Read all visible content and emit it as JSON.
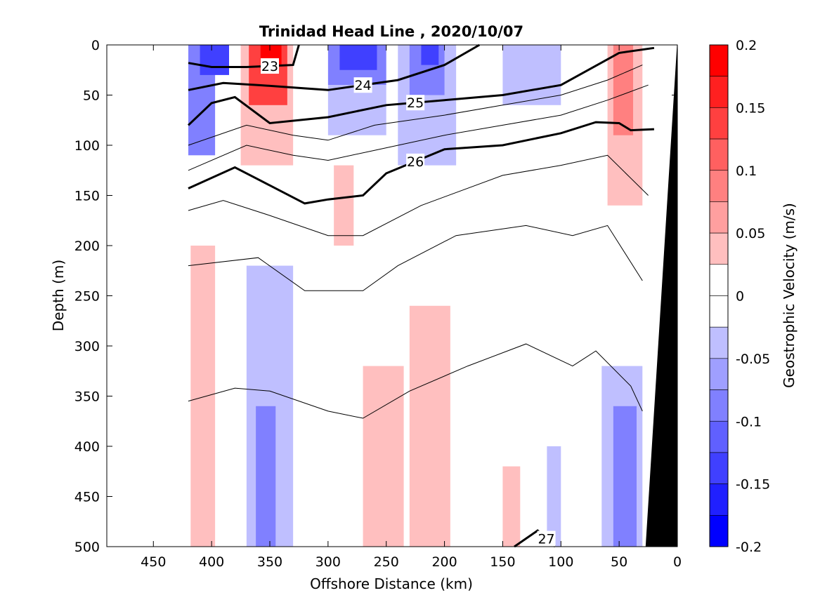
{
  "chart_data": {
    "type": "heatmap",
    "title": "Trinidad Head Line , 2020/10/07",
    "xlabel": "Offshore Distance (km)",
    "ylabel": "Depth (m)",
    "xlim": [
      490,
      0
    ],
    "ylim": [
      500,
      0
    ],
    "x_reversed": true,
    "y_reversed": true,
    "x_ticks": [
      450,
      400,
      350,
      300,
      250,
      200,
      150,
      100,
      50,
      0
    ],
    "y_ticks": [
      0,
      50,
      100,
      150,
      200,
      250,
      300,
      350,
      400,
      450,
      500
    ],
    "colorbar": {
      "label": "Geostrophic Velocity (m/s)",
      "range": [
        -0.2,
        0.2
      ],
      "ticks": [
        "0.2",
        "0.15",
        "0.1",
        "0.05",
        "0",
        "-0.05",
        "-0.1",
        "-0.15",
        "-0.2"
      ],
      "tick_values": [
        0.2,
        0.15,
        0.1,
        0.05,
        0,
        -0.05,
        -0.1,
        -0.15,
        -0.2
      ],
      "levels": 16,
      "negative_color": "#0000ff",
      "positive_color": "#ff0000",
      "zero_color": "#ffffff"
    },
    "velocity_cells": [
      {
        "x0": 420,
        "x1": 397,
        "y0": 0,
        "y1": 110,
        "v": -0.1
      },
      {
        "x0": 410,
        "x1": 385,
        "y0": 0,
        "y1": 30,
        "v": -0.15
      },
      {
        "x0": 375,
        "x1": 330,
        "y0": 0,
        "y1": 120,
        "v": 0.05
      },
      {
        "x0": 368,
        "x1": 335,
        "y0": 0,
        "y1": 60,
        "v": 0.15
      },
      {
        "x0": 358,
        "x1": 340,
        "y0": 0,
        "y1": 20,
        "v": 0.2
      },
      {
        "x0": 300,
        "x1": 250,
        "y0": 0,
        "y1": 40,
        "v": -0.1
      },
      {
        "x0": 300,
        "x1": 250,
        "y0": 40,
        "y1": 90,
        "v": -0.05
      },
      {
        "x0": 290,
        "x1": 258,
        "y0": 0,
        "y1": 25,
        "v": -0.15
      },
      {
        "x0": 240,
        "x1": 190,
        "y0": 0,
        "y1": 120,
        "v": -0.05
      },
      {
        "x0": 230,
        "x1": 200,
        "y0": 0,
        "y1": 50,
        "v": -0.1
      },
      {
        "x0": 220,
        "x1": 205,
        "y0": 0,
        "y1": 20,
        "v": -0.15
      },
      {
        "x0": 295,
        "x1": 278,
        "y0": 120,
        "y1": 200,
        "v": 0.05
      },
      {
        "x0": 150,
        "x1": 100,
        "y0": 0,
        "y1": 60,
        "v": -0.05
      },
      {
        "x0": 60,
        "x1": 30,
        "y0": 0,
        "y1": 160,
        "v": 0.05
      },
      {
        "x0": 55,
        "x1": 38,
        "y0": 0,
        "y1": 90,
        "v": 0.1
      },
      {
        "x0": 418,
        "x1": 397,
        "y0": 200,
        "y1": 500,
        "v": 0.05
      },
      {
        "x0": 370,
        "x1": 330,
        "y0": 220,
        "y1": 500,
        "v": -0.05
      },
      {
        "x0": 362,
        "x1": 345,
        "y0": 360,
        "y1": 500,
        "v": -0.1
      },
      {
        "x0": 270,
        "x1": 235,
        "y0": 320,
        "y1": 500,
        "v": 0.05
      },
      {
        "x0": 230,
        "x1": 195,
        "y0": 260,
        "y1": 500,
        "v": 0.05
      },
      {
        "x0": 150,
        "x1": 135,
        "y0": 420,
        "y1": 500,
        "v": 0.05
      },
      {
        "x0": 112,
        "x1": 100,
        "y0": 400,
        "y1": 500,
        "v": -0.05
      },
      {
        "x0": 65,
        "x1": 30,
        "y0": 320,
        "y1": 500,
        "v": -0.05
      },
      {
        "x0": 55,
        "x1": 35,
        "y0": 360,
        "y1": 500,
        "v": -0.1
      }
    ],
    "isopycnals": [
      {
        "label": "23",
        "bold": true,
        "x": [
          420,
          400,
          370,
          330,
          325
        ],
        "y": [
          18,
          22,
          22,
          20,
          0
        ]
      },
      {
        "label": "24",
        "bold": true,
        "x": [
          420,
          390,
          360,
          300,
          240,
          200,
          170
        ],
        "y": [
          45,
          38,
          40,
          45,
          35,
          20,
          0
        ]
      },
      {
        "label": "25",
        "bold": true,
        "x": [
          420,
          400,
          380,
          350,
          300,
          250,
          200,
          150,
          100,
          50,
          20
        ],
        "y": [
          80,
          58,
          52,
          78,
          72,
          60,
          55,
          50,
          40,
          8,
          3
        ]
      },
      {
        "label": "26",
        "bold": true,
        "x": [
          420,
          380,
          350,
          320,
          300,
          270,
          250,
          200,
          150,
          100,
          70,
          50,
          40,
          20
        ],
        "y": [
          143,
          122,
          140,
          158,
          154,
          150,
          128,
          104,
          100,
          88,
          77,
          78,
          85,
          84
        ]
      },
      {
        "label": "27",
        "bold": true,
        "x": [
          140,
          120,
          105
        ],
        "y": [
          500,
          484,
          500
        ]
      }
    ],
    "thin_contours": [
      {
        "x": [
          420,
          370,
          330,
          300,
          260,
          200,
          150,
          100,
          60,
          30
        ],
        "y": [
          100,
          80,
          90,
          95,
          80,
          70,
          60,
          50,
          35,
          20
        ]
      },
      {
        "x": [
          420,
          370,
          330,
          300,
          260,
          200,
          150,
          100,
          60,
          25
        ],
        "y": [
          125,
          100,
          110,
          115,
          105,
          90,
          80,
          70,
          55,
          40
        ]
      },
      {
        "x": [
          420,
          390,
          350,
          300,
          270,
          220,
          150,
          100,
          60,
          25
        ],
        "y": [
          165,
          155,
          170,
          190,
          190,
          160,
          130,
          120,
          110,
          150
        ]
      },
      {
        "x": [
          420,
          360,
          320,
          270,
          240,
          190,
          130,
          90,
          60,
          30
        ],
        "y": [
          220,
          212,
          245,
          245,
          220,
          190,
          180,
          190,
          180,
          235
        ]
      },
      {
        "x": [
          420,
          380,
          350,
          300,
          270,
          230,
          180,
          130,
          90,
          70,
          40,
          30
        ],
        "y": [
          355,
          342,
          345,
          365,
          372,
          345,
          320,
          298,
          320,
          305,
          340,
          365
        ]
      }
    ],
    "bathymetry": {
      "x": [
        0,
        27,
        20,
        0
      ],
      "y": [
        0,
        500,
        500,
        500
      ],
      "color": "#000000"
    }
  }
}
